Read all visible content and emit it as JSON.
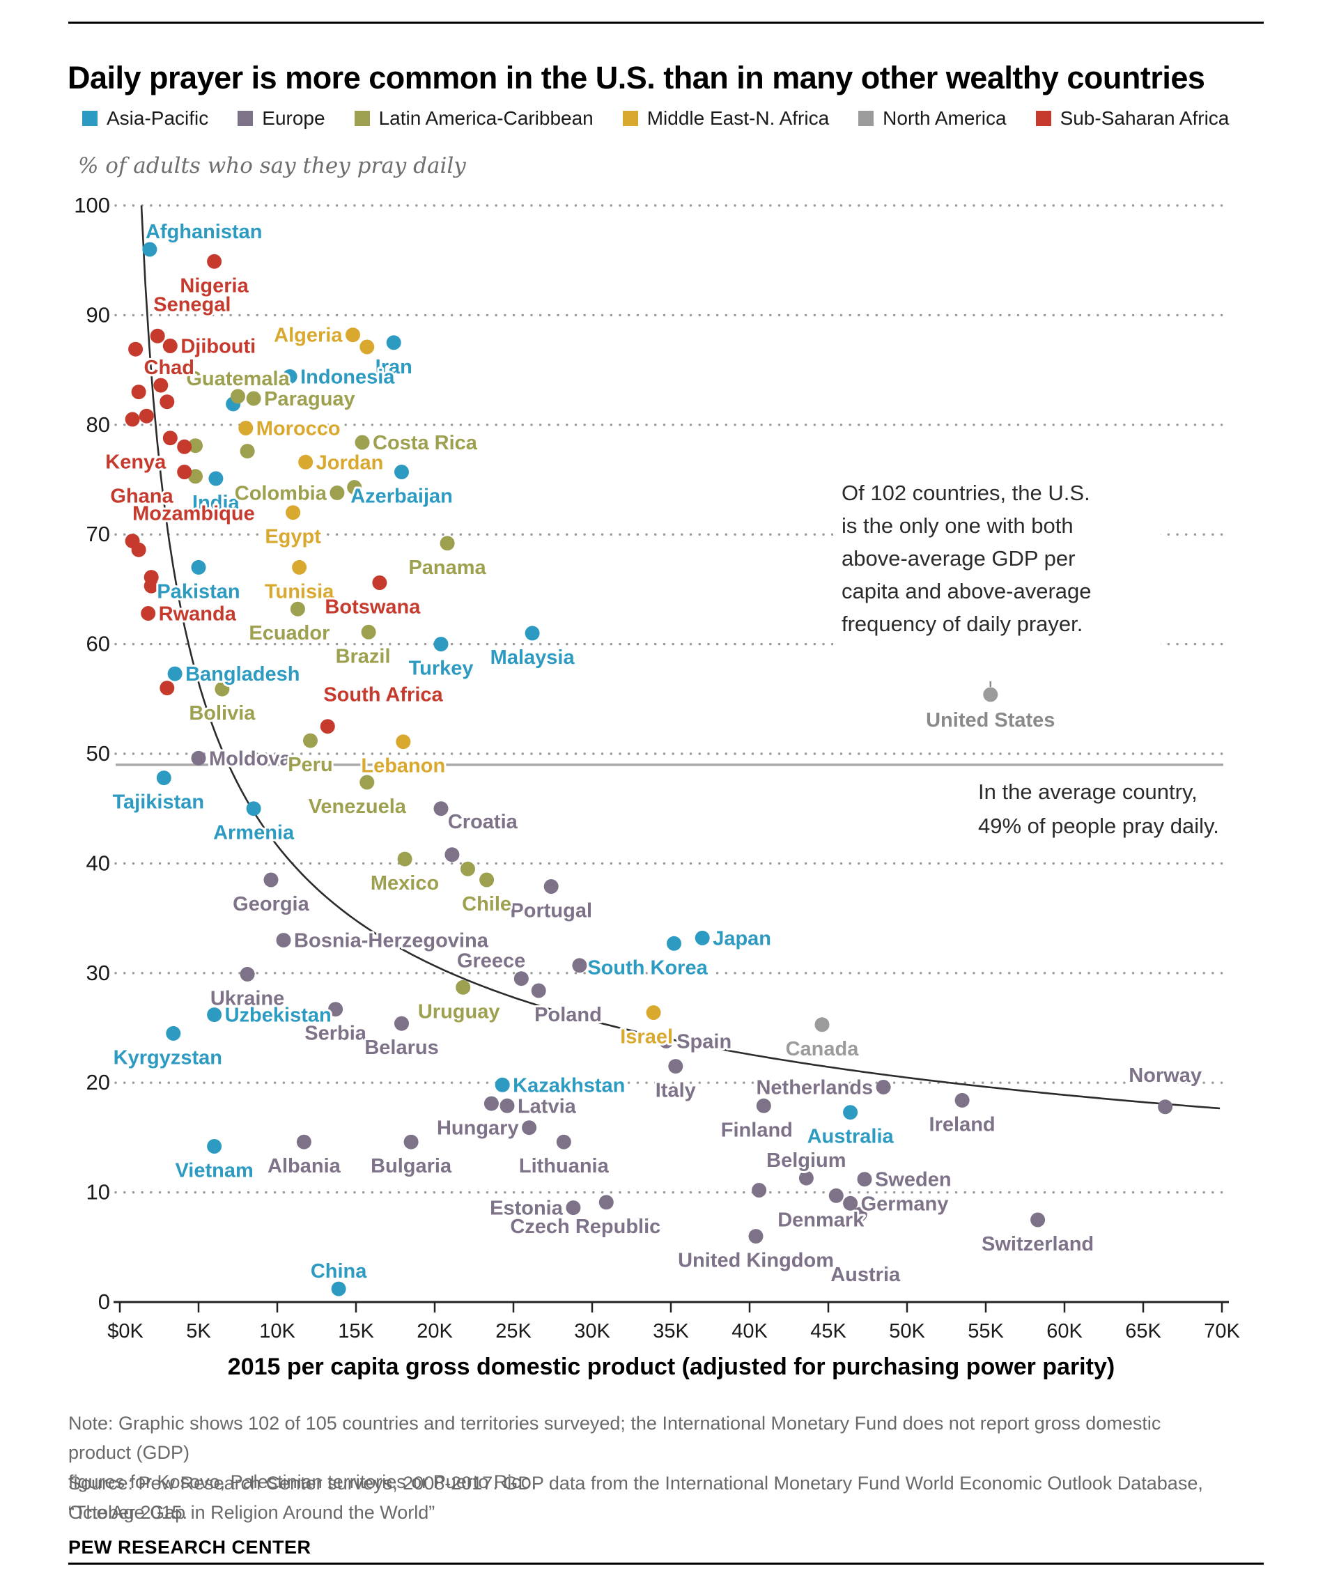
{
  "header": {
    "title": "Daily prayer is more common in the U.S. than in many other wealthy countries"
  },
  "subtitle": "% of adults who say they pray daily",
  "legend": {
    "items": [
      {
        "label": "Asia-Pacific",
        "color": "#2D9BC1"
      },
      {
        "label": "Europe",
        "color": "#7D7287"
      },
      {
        "label": "Latin America-Caribbean",
        "color": "#9DA04F"
      },
      {
        "label": "Middle East-N. Africa",
        "color": "#D9A82F"
      },
      {
        "label": "North America",
        "color": "#9B9B9B"
      },
      {
        "label": "Sub-Saharan Africa",
        "color": "#C53A2C"
      }
    ]
  },
  "chart_data": {
    "type": "scatter",
    "ylabel": "% of adults who say they pray daily",
    "xlabel": "2015 per capita gross domestic product (adjusted for purchasing power parity)",
    "xlim": [
      0,
      70
    ],
    "ylim": [
      0,
      100
    ],
    "x_tick_labels": [
      "$0K",
      "5K",
      "10K",
      "15K",
      "20K",
      "25K",
      "30K",
      "35K",
      "40K",
      "45K",
      "50K",
      "55K",
      "60K",
      "65K",
      "70K"
    ],
    "y_ticks": [
      0,
      10,
      20,
      30,
      40,
      50,
      60,
      70,
      80,
      90,
      100
    ],
    "grid": "dotted-horizontal",
    "trend_curve": {
      "type": "power",
      "a": 114.9,
      "b": -0.441,
      "x_start": 1.37,
      "x_end": 70
    },
    "average_line": {
      "value": 49,
      "note_lines": [
        "In the average country,",
        "49% of people pray daily."
      ]
    },
    "us_callout": {
      "note_lines": [
        "Of 102 countries, the U.S.",
        "is the only one with both",
        "above-average GDP per",
        "capita and above-average",
        "frequency of daily prayer."
      ],
      "country_label": "United States"
    },
    "series": [
      {
        "name": "Asia-Pacific",
        "color": "#2D9BC1",
        "points": [
          {
            "country": "Afghanistan",
            "gdp_k": 1.9,
            "pray_pct": 96.0,
            "label": "ar"
          },
          {
            "country": "Iran",
            "gdp_k": 17.4,
            "pray_pct": 87.5,
            "label": "b"
          },
          {
            "country": "Indonesia",
            "gdp_k": 10.8,
            "pray_pct": 84.4,
            "label": "r"
          },
          {
            "country": "",
            "gdp_k": 7.2,
            "pray_pct": 81.9,
            "label": null
          },
          {
            "country": "Azerbaijan",
            "gdp_k": 17.9,
            "pray_pct": 75.7,
            "label": "b"
          },
          {
            "country": "India",
            "gdp_k": 6.1,
            "pray_pct": 75.1,
            "label": "b"
          },
          {
            "country": "Pakistan",
            "gdp_k": 5.0,
            "pray_pct": 67.0,
            "label": "b"
          },
          {
            "country": "Bangladesh",
            "gdp_k": 3.5,
            "pray_pct": 57.3,
            "label": "r"
          },
          {
            "country": "Malaysia",
            "gdp_k": 26.2,
            "pray_pct": 61.0,
            "label": "b"
          },
          {
            "country": "Turkey",
            "gdp_k": 20.4,
            "pray_pct": 60.0,
            "label": "b"
          },
          {
            "country": "Tajikistan",
            "gdp_k": 2.8,
            "pray_pct": 47.8,
            "label": "b",
            "dx": -8
          },
          {
            "country": "Armenia",
            "gdp_k": 8.5,
            "pray_pct": 45.0,
            "label": "b"
          },
          {
            "country": "Uzbekistan",
            "gdp_k": 6.0,
            "pray_pct": 26.2,
            "label": "r"
          },
          {
            "country": "Kyrgyzstan",
            "gdp_k": 3.4,
            "pray_pct": 24.5,
            "label": "b",
            "dx": -8
          },
          {
            "country": "Japan",
            "gdp_k": 37.0,
            "pray_pct": 33.2,
            "label": "r"
          },
          {
            "country": "South Korea",
            "gdp_k": 35.2,
            "pray_pct": 32.7,
            "label": "b",
            "dx": -38
          },
          {
            "country": "Kazakhstan",
            "gdp_k": 24.3,
            "pray_pct": 19.8,
            "label": "r"
          },
          {
            "country": "Australia",
            "gdp_k": 46.4,
            "pray_pct": 17.3,
            "label": "b"
          },
          {
            "country": "Vietnam",
            "gdp_k": 6.0,
            "pray_pct": 14.2,
            "label": "b"
          },
          {
            "country": "China",
            "gdp_k": 13.9,
            "pray_pct": 1.2,
            "label": "a"
          }
        ]
      },
      {
        "name": "Europe",
        "color": "#7D7287",
        "points": [
          {
            "country": "Moldova",
            "gdp_k": 5.0,
            "pray_pct": 49.6,
            "label": "r"
          },
          {
            "country": "",
            "gdp_k": 20.4,
            "pray_pct": 45.0,
            "label": null
          },
          {
            "country": "Croatia",
            "gdp_k": 21.1,
            "pray_pct": 40.8,
            "label": "ar",
            "dy": -22
          },
          {
            "country": "Georgia",
            "gdp_k": 9.6,
            "pray_pct": 38.5,
            "label": "b"
          },
          {
            "country": "Portugal",
            "gdp_k": 27.4,
            "pray_pct": 37.9,
            "label": "b"
          },
          {
            "country": "Bosnia-Herzegovina",
            "gdp_k": 10.4,
            "pray_pct": 33.0,
            "label": "r"
          },
          {
            "country": "Ukraine",
            "gdp_k": 8.1,
            "pray_pct": 29.9,
            "label": "b"
          },
          {
            "country": "Greece",
            "gdp_k": 25.5,
            "pray_pct": 29.5,
            "label": "al"
          },
          {
            "country": "",
            "gdp_k": 29.2,
            "pray_pct": 30.7,
            "label": null
          },
          {
            "country": "Poland",
            "gdp_k": 26.6,
            "pray_pct": 28.4,
            "label": "br"
          },
          {
            "country": "Serbia",
            "gdp_k": 13.7,
            "pray_pct": 26.7,
            "label": "b"
          },
          {
            "country": "Belarus",
            "gdp_k": 17.9,
            "pray_pct": 25.4,
            "label": "b"
          },
          {
            "country": "Spain",
            "gdp_k": 34.7,
            "pray_pct": 23.8,
            "label": "r"
          },
          {
            "country": "Italy",
            "gdp_k": 35.3,
            "pray_pct": 21.5,
            "label": "b"
          },
          {
            "country": "Netherlands",
            "gdp_k": 48.5,
            "pray_pct": 19.6,
            "label": "l"
          },
          {
            "country": "Ireland",
            "gdp_k": 53.5,
            "pray_pct": 18.4,
            "label": "b"
          },
          {
            "country": "Finland",
            "gdp_k": 40.9,
            "pray_pct": 17.9,
            "label": "b",
            "dx": -10
          },
          {
            "country": "Norway",
            "gdp_k": 66.4,
            "pray_pct": 17.8,
            "label": "a",
            "dy": -20
          },
          {
            "country": "Latvia",
            "gdp_k": 24.6,
            "pray_pct": 17.9,
            "label": "r"
          },
          {
            "country": "",
            "gdp_k": 23.6,
            "pray_pct": 18.1,
            "label": null
          },
          {
            "country": "Hungary",
            "gdp_k": 26.0,
            "pray_pct": 15.9,
            "label": "l"
          },
          {
            "country": "Lithuania",
            "gdp_k": 28.2,
            "pray_pct": 14.6,
            "label": "b"
          },
          {
            "country": "Albania",
            "gdp_k": 11.7,
            "pray_pct": 14.6,
            "label": "b"
          },
          {
            "country": "Bulgaria",
            "gdp_k": 18.5,
            "pray_pct": 14.6,
            "label": "b"
          },
          {
            "country": "Belgium",
            "gdp_k": 43.6,
            "pray_pct": 11.3,
            "label": "a"
          },
          {
            "country": "Sweden",
            "gdp_k": 47.3,
            "pray_pct": 11.2,
            "label": "r"
          },
          {
            "country": "",
            "gdp_k": 40.6,
            "pray_pct": 10.2,
            "label": null
          },
          {
            "country": "Denmark",
            "gdp_k": 45.5,
            "pray_pct": 9.7,
            "label": "b",
            "dx": -22
          },
          {
            "country": "Germany",
            "gdp_k": 46.4,
            "pray_pct": 9.0,
            "label": "r"
          },
          {
            "country": "Austria",
            "gdp_k": 47.0,
            "pray_pct": 8.0,
            "label": "b",
            "dx": 8,
            "dy": 52
          },
          {
            "country": "Czech Republic",
            "gdp_k": 30.9,
            "pray_pct": 9.1,
            "label": "b",
            "dx": -30
          },
          {
            "country": "Estonia",
            "gdp_k": 28.8,
            "pray_pct": 8.6,
            "label": "l"
          },
          {
            "country": "Switzerland",
            "gdp_k": 58.3,
            "pray_pct": 7.5,
            "label": "b"
          },
          {
            "country": "United Kingdom",
            "gdp_k": 40.4,
            "pray_pct": 6.0,
            "label": "b"
          }
        ]
      },
      {
        "name": "Latin America-Caribbean",
        "color": "#9DA04F",
        "points": [
          {
            "country": "Guatemala",
            "gdp_k": 7.5,
            "pray_pct": 82.6,
            "label": "a"
          },
          {
            "country": "Paraguay",
            "gdp_k": 8.5,
            "pray_pct": 82.4,
            "label": "r"
          },
          {
            "country": "Costa Rica",
            "gdp_k": 15.4,
            "pray_pct": 78.4,
            "label": "r"
          },
          {
            "country": "",
            "gdp_k": 4.8,
            "pray_pct": 78.1,
            "label": null
          },
          {
            "country": "",
            "gdp_k": 8.1,
            "pray_pct": 77.6,
            "label": null
          },
          {
            "country": "",
            "gdp_k": 4.8,
            "pray_pct": 75.3,
            "label": null
          },
          {
            "country": "Colombia",
            "gdp_k": 13.8,
            "pray_pct": 73.8,
            "label": "l"
          },
          {
            "country": "",
            "gdp_k": 14.9,
            "pray_pct": 74.3,
            "label": null
          },
          {
            "country": "Panama",
            "gdp_k": 20.8,
            "pray_pct": 69.2,
            "label": "b"
          },
          {
            "country": "Ecuador",
            "gdp_k": 11.3,
            "pray_pct": 63.2,
            "label": "b",
            "dx": -12
          },
          {
            "country": "Brazil",
            "gdp_k": 15.8,
            "pray_pct": 61.1,
            "label": "b",
            "dx": -8
          },
          {
            "country": "Bolivia",
            "gdp_k": 6.5,
            "pray_pct": 55.9,
            "label": "b"
          },
          {
            "country": "Peru",
            "gdp_k": 12.1,
            "pray_pct": 51.2,
            "label": "b"
          },
          {
            "country": "Venezuela",
            "gdp_k": 15.7,
            "pray_pct": 47.4,
            "label": "b",
            "dx": -14
          },
          {
            "country": "Mexico",
            "gdp_k": 18.1,
            "pray_pct": 40.4,
            "label": "b"
          },
          {
            "country": "Chile",
            "gdp_k": 23.3,
            "pray_pct": 38.5,
            "label": "b"
          },
          {
            "country": "",
            "gdp_k": 22.1,
            "pray_pct": 39.5,
            "label": null
          },
          {
            "country": "Uruguay",
            "gdp_k": 21.8,
            "pray_pct": 28.7,
            "label": "b",
            "dx": -6
          }
        ]
      },
      {
        "name": "Middle East-N. Africa",
        "color": "#D9A82F",
        "points": [
          {
            "country": "Algeria",
            "gdp_k": 14.8,
            "pray_pct": 88.2,
            "label": "l"
          },
          {
            "country": "",
            "gdp_k": 15.7,
            "pray_pct": 87.1,
            "label": null
          },
          {
            "country": "Morocco",
            "gdp_k": 8.0,
            "pray_pct": 79.7,
            "label": "r"
          },
          {
            "country": "Jordan",
            "gdp_k": 11.8,
            "pray_pct": 76.6,
            "label": "r"
          },
          {
            "country": "Egypt",
            "gdp_k": 11.0,
            "pray_pct": 72.0,
            "label": "b"
          },
          {
            "country": "Tunisia",
            "gdp_k": 11.4,
            "pray_pct": 67.0,
            "label": "b"
          },
          {
            "country": "Lebanon",
            "gdp_k": 18.0,
            "pray_pct": 51.1,
            "label": "b"
          },
          {
            "country": "Israel",
            "gdp_k": 33.9,
            "pray_pct": 26.4,
            "label": "b",
            "dx": -10
          }
        ]
      },
      {
        "name": "North America",
        "color": "#9B9B9B",
        "points": [
          {
            "country": "United States",
            "gdp_k": 55.3,
            "pray_pct": 55.4,
            "label": "us"
          },
          {
            "country": "Canada",
            "gdp_k": 44.6,
            "pray_pct": 25.3,
            "label": "b"
          }
        ]
      },
      {
        "name": "Sub-Saharan Africa",
        "color": "#C53A2C",
        "points": [
          {
            "country": "Nigeria",
            "gdp_k": 6.0,
            "pray_pct": 94.9,
            "label": "b"
          },
          {
            "country": "Senegal",
            "gdp_k": 2.4,
            "pray_pct": 88.1,
            "label": "ar",
            "dy": -20
          },
          {
            "country": "Djibouti",
            "gdp_k": 3.2,
            "pray_pct": 87.2,
            "label": "r"
          },
          {
            "country": "",
            "gdp_k": 1.0,
            "pray_pct": 86.9,
            "label": null
          },
          {
            "country": "Chad",
            "gdp_k": 2.6,
            "pray_pct": 83.6,
            "label": "a",
            "dx": 12
          },
          {
            "country": "",
            "gdp_k": 1.2,
            "pray_pct": 83.0,
            "label": null
          },
          {
            "country": "",
            "gdp_k": 3.0,
            "pray_pct": 82.1,
            "label": null
          },
          {
            "country": "",
            "gdp_k": 0.8,
            "pray_pct": 80.5,
            "label": null
          },
          {
            "country": "",
            "gdp_k": 1.7,
            "pray_pct": 80.8,
            "label": null
          },
          {
            "country": "Kenya",
            "gdp_k": 3.2,
            "pray_pct": 78.8,
            "label": "bl",
            "dx": 30
          },
          {
            "country": "",
            "gdp_k": 4.1,
            "pray_pct": 78.0,
            "label": null
          },
          {
            "country": "Ghana",
            "gdp_k": 4.1,
            "pray_pct": 75.7,
            "label": "bl",
            "dx": 20
          },
          {
            "country": "Mozambique",
            "gdp_k": 0.8,
            "pray_pct": 69.4,
            "label": "ar",
            "dy": -14,
            "dx": 6
          },
          {
            "country": "",
            "gdp_k": 1.2,
            "pray_pct": 68.6,
            "label": null
          },
          {
            "country": "",
            "gdp_k": 2.0,
            "pray_pct": 66.1,
            "label": null
          },
          {
            "country": "",
            "gdp_k": 2.0,
            "pray_pct": 65.3,
            "label": null
          },
          {
            "country": "Rwanda",
            "gdp_k": 1.8,
            "pray_pct": 62.8,
            "label": "r"
          },
          {
            "country": "Botswana",
            "gdp_k": 16.5,
            "pray_pct": 65.6,
            "label": "b",
            "dx": -10
          },
          {
            "country": "South Africa",
            "gdp_k": 13.2,
            "pray_pct": 52.5,
            "label": "ar",
            "dy": -20
          },
          {
            "country": "",
            "gdp_k": 3.0,
            "pray_pct": 56.0,
            "label": null
          }
        ]
      }
    ]
  },
  "footer": {
    "note_line1": "Note: Graphic shows 102 of 105 countries and territories surveyed; the International Monetary Fund does not report gross domestic product (GDP)",
    "note_line2": "figures for Kosovo, Palestinian territories or Puerto Rico.",
    "source": "Source: Pew Research Center surveys, 2008-2017. GDP data from the International Monetary Fund World Economic Outlook Database, October 2015.",
    "quote": "“The Age Gap in Religion Around the World”",
    "brand": "PEW RESEARCH CENTER"
  }
}
